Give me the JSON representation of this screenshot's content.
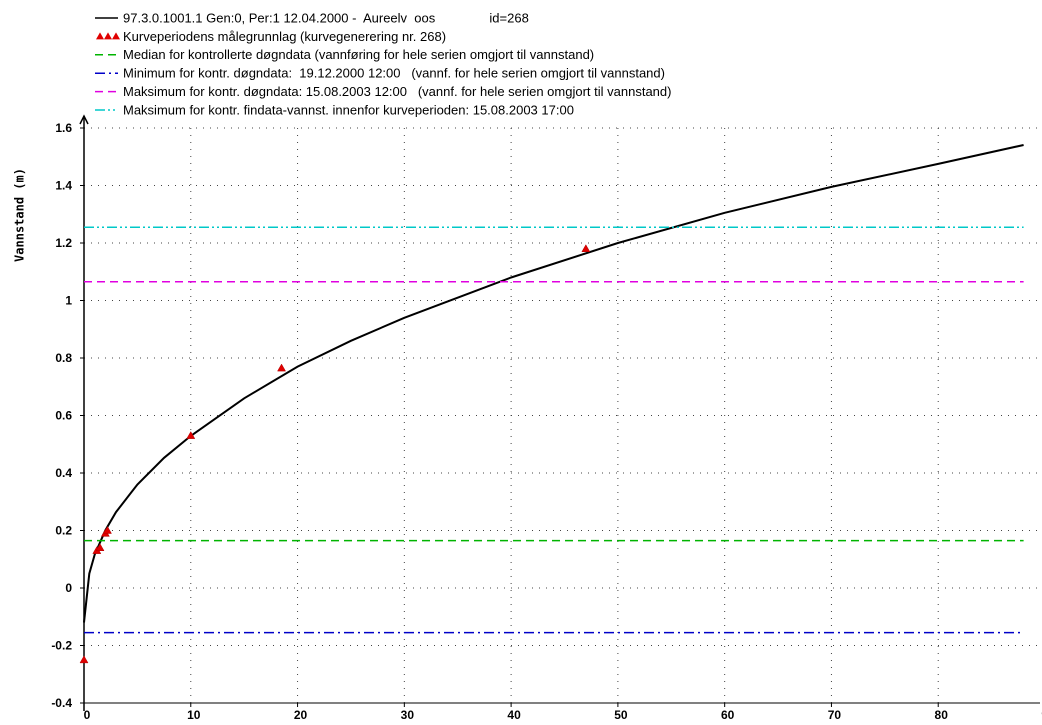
{
  "chart_data": {
    "type": "line",
    "y_label": "Vannstand (m)",
    "xlim": [
      0,
      90
    ],
    "ylim": [
      -0.4,
      1.6
    ],
    "xticks": [
      0,
      10,
      20,
      30,
      40,
      50,
      60,
      70,
      80,
      90
    ],
    "yticks": [
      -0.4,
      -0.2,
      0,
      0.2,
      0.4,
      0.6,
      0.8,
      1,
      1.2,
      1.4,
      1.6
    ],
    "grid": true,
    "series": [
      {
        "name": "97.3.0.1001.1 Gen:0, Per:1 12.04.2000 -  Aureelv  oos               id=268",
        "style": "solid",
        "color": "#000000",
        "x": [
          0,
          0.5,
          1,
          2,
          3,
          5,
          7.5,
          10,
          15,
          20,
          25,
          30,
          40,
          50,
          60,
          70,
          80,
          88
        ],
        "values": [
          -0.12,
          0.05,
          0.116,
          0.201,
          0.264,
          0.36,
          0.453,
          0.529,
          0.66,
          0.77,
          0.86,
          0.94,
          1.08,
          1.2,
          1.305,
          1.395,
          1.475,
          1.541
        ]
      },
      {
        "name": "Kurveperiodens målegrunnlag (kurvegenerering nr. 268)",
        "style": "markers",
        "color": "#e00000",
        "x": [
          0,
          1.2,
          1.5,
          2,
          2.2,
          10,
          18.5,
          47
        ],
        "values": [
          -0.25,
          0.13,
          0.14,
          0.19,
          0.2,
          0.53,
          0.765,
          1.18
        ]
      },
      {
        "name": "Median for kontrollerte døgndata (vannføring for hele serien omgjort til vannstand)",
        "style": "dashed",
        "color": "#00b400",
        "x": [
          0,
          88
        ],
        "values": [
          0.165,
          0.165
        ]
      },
      {
        "name": "Minimum for kontr. døgndata:  19.12.2000 12:00   (vannf. for hele serien omgjort til vannstand)",
        "style": "dashdot",
        "color": "#0000c8",
        "x": [
          0,
          88
        ],
        "values": [
          -0.155,
          -0.155
        ]
      },
      {
        "name": "Maksimum for kontr. døgndata: 15.08.2003 12:00   (vannf. for hele serien omgjort til vannstand)",
        "style": "dashed",
        "color": "#e000e0",
        "x": [
          0,
          88
        ],
        "values": [
          1.065,
          1.065
        ]
      },
      {
        "name": "Maksimum for kontr. findata-vannst. innenfor kurveperioden: 15.08.2003 17:00",
        "style": "dashdotdot",
        "color": "#00c8c8",
        "x": [
          0,
          88
        ],
        "values": [
          1.255,
          1.255
        ]
      }
    ]
  }
}
